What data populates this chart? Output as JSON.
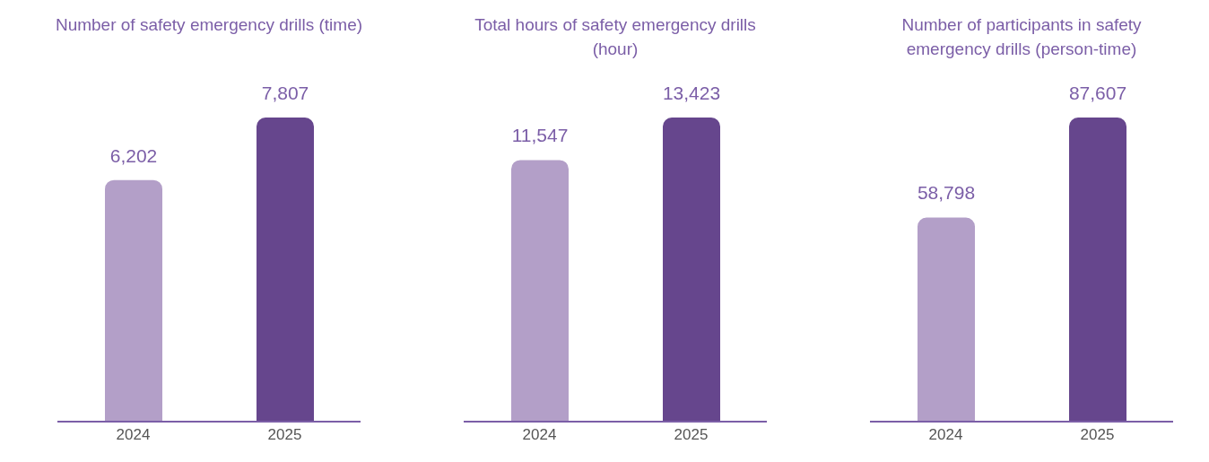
{
  "chart_data": [
    {
      "type": "bar",
      "title": "Number of safety emergency drills (time)",
      "categories": [
        "2024",
        "2025"
      ],
      "values": [
        6202,
        7807
      ],
      "colors": [
        "#b39fc8",
        "#66468d"
      ],
      "value_labels": [
        "6,202",
        "7,807"
      ]
    },
    {
      "type": "bar",
      "title": "Total hours of safety emergency drills (hour)",
      "categories": [
        "2024",
        "2025"
      ],
      "values": [
        11547,
        13423
      ],
      "colors": [
        "#b39fc8",
        "#66468d"
      ],
      "value_labels": [
        "11,547",
        "13,423"
      ]
    },
    {
      "type": "bar",
      "title": "Number of participants in safety emergency drills (person-time)",
      "categories": [
        "2024",
        "2025"
      ],
      "values": [
        58798,
        87607
      ],
      "colors": [
        "#b39fc8",
        "#66468d"
      ],
      "value_labels": [
        "58,798",
        "87,607"
      ]
    }
  ]
}
